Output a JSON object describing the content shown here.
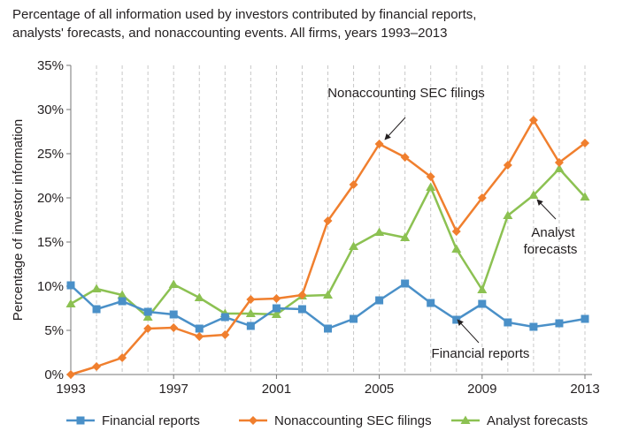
{
  "chart_data": {
    "type": "line",
    "title": "Percentage of all information used by investors contributed by financial reports, analysts' forecasts, and nonaccounting events. All firms, years 1993–2013",
    "title_lines": [
      "Percentage of all information used by investors contributed by financial reports,",
      "analysts' forecasts, and nonaccounting events. All firms, years 1993–2013"
    ],
    "xlabel": "",
    "ylabel": "Percentage of investor information",
    "x": [
      1993,
      1994,
      1995,
      1996,
      1997,
      1998,
      1999,
      2000,
      2001,
      2002,
      2003,
      2004,
      2005,
      2006,
      2007,
      2008,
      2009,
      2010,
      2011,
      2012,
      2013
    ],
    "xlim": [
      1993,
      2013
    ],
    "x_ticks": [
      1993,
      1997,
      2001,
      2005,
      2009,
      2013
    ],
    "ylim": [
      0,
      35
    ],
    "y_ticks": [
      0,
      5,
      10,
      15,
      20,
      25,
      30,
      35
    ],
    "y_tick_labels": [
      "0%",
      "5%",
      "10%",
      "15%",
      "20%",
      "25%",
      "30%",
      "35%"
    ],
    "grid": "vertical dashed",
    "legend_position": "bottom",
    "series": [
      {
        "name": "Financial reports",
        "color": "#4a90c8",
        "marker": "square",
        "values": [
          10.1,
          7.4,
          8.3,
          7.1,
          6.8,
          5.2,
          6.5,
          5.5,
          7.5,
          7.4,
          5.2,
          6.3,
          8.4,
          10.3,
          8.1,
          6.2,
          8.0,
          5.9,
          5.4,
          5.8,
          6.3
        ]
      },
      {
        "name": "Nonaccounting SEC filings",
        "color": "#f07f2e",
        "marker": "diamond",
        "values": [
          0.0,
          0.9,
          1.9,
          5.2,
          5.3,
          4.3,
          4.5,
          8.5,
          8.6,
          9.0,
          17.4,
          21.5,
          26.1,
          24.6,
          22.4,
          16.2,
          20.0,
          23.7,
          28.8,
          24.0,
          26.2
        ]
      },
      {
        "name": "Analyst forecasts",
        "color": "#8cc152",
        "marker": "triangle",
        "values": [
          8.0,
          9.7,
          9.0,
          6.5,
          10.2,
          8.7,
          6.9,
          6.9,
          6.8,
          8.9,
          9.0,
          14.5,
          16.1,
          15.5,
          21.2,
          14.2,
          9.6,
          18.0,
          20.3,
          23.3,
          20.1
        ]
      }
    ],
    "annotations": [
      {
        "text_lines": [
          "Nonaccounting SEC filings"
        ],
        "target": {
          "x": 2005,
          "y": 26.1
        }
      },
      {
        "text_lines": [
          "Analyst",
          "forecasts"
        ],
        "target": {
          "x": 2011,
          "y": 20.3
        }
      },
      {
        "text_lines": [
          "Financial reports"
        ],
        "target": {
          "x": 2008,
          "y": 6.2
        }
      }
    ]
  }
}
